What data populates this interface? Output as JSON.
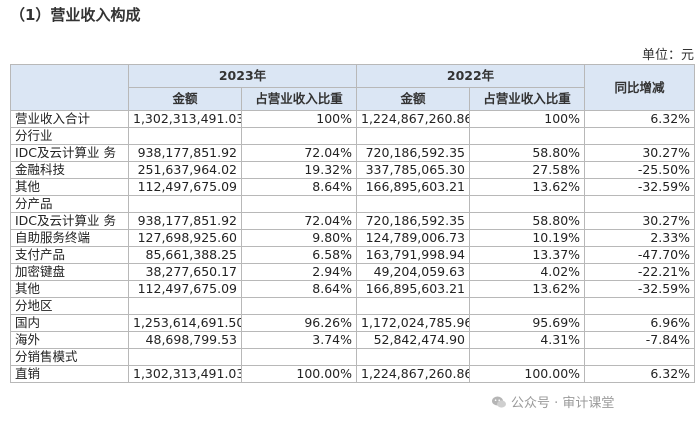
{
  "title": "（1）营业收入构成",
  "unit": "单位：元",
  "header": {
    "year_current": "2023年",
    "year_prior": "2022年",
    "amount": "金额",
    "share": "占营业收入比重",
    "yoy": "同比增减"
  },
  "rows": [
    {
      "type": "data",
      "label": "营业收入合计",
      "a1": "1,302,313,491.03",
      "p1": "100%",
      "a2": "1,224,867,260.86",
      "p2": "100%",
      "yoy": "6.32%"
    },
    {
      "type": "section",
      "label": "分行业"
    },
    {
      "type": "data",
      "label": "IDC及云计算业 务",
      "a1": "938,177,851.92",
      "p1": "72.04%",
      "a2": "720,186,592.35",
      "p2": "58.80%",
      "yoy": "30.27%"
    },
    {
      "type": "data",
      "label": "金融科技",
      "a1": "251,637,964.02",
      "p1": "19.32%",
      "a2": "337,785,065.30",
      "p2": "27.58%",
      "yoy": "-25.50%"
    },
    {
      "type": "data",
      "label": "其他",
      "a1": "112,497,675.09",
      "p1": "8.64%",
      "a2": "166,895,603.21",
      "p2": "13.62%",
      "yoy": "-32.59%"
    },
    {
      "type": "section",
      "label": "分产品"
    },
    {
      "type": "data",
      "label": "IDC及云计算业 务",
      "a1": "938,177,851.92",
      "p1": "72.04%",
      "a2": "720,186,592.35",
      "p2": "58.80%",
      "yoy": "30.27%"
    },
    {
      "type": "data",
      "label": "自助服务终端",
      "a1": "127,698,925.60",
      "p1": "9.80%",
      "a2": "124,789,006.73",
      "p2": "10.19%",
      "yoy": "2.33%"
    },
    {
      "type": "data",
      "label": "支付产品",
      "a1": "85,661,388.25",
      "p1": "6.58%",
      "a2": "163,791,998.94",
      "p2": "13.37%",
      "yoy": "-47.70%"
    },
    {
      "type": "data",
      "label": "加密键盘",
      "a1": "38,277,650.17",
      "p1": "2.94%",
      "a2": "49,204,059.63",
      "p2": "4.02%",
      "yoy": "-22.21%"
    },
    {
      "type": "data",
      "label": "其他",
      "a1": "112,497,675.09",
      "p1": "8.64%",
      "a2": "166,895,603.21",
      "p2": "13.62%",
      "yoy": "-32.59%"
    },
    {
      "type": "section",
      "label": "分地区"
    },
    {
      "type": "data",
      "label": "国内",
      "a1": "1,253,614,691.50",
      "p1": "96.26%",
      "a2": "1,172,024,785.96",
      "p2": "95.69%",
      "yoy": "6.96%"
    },
    {
      "type": "data",
      "label": "海外",
      "a1": "48,698,799.53",
      "p1": "3.74%",
      "a2": "52,842,474.90",
      "p2": "4.31%",
      "yoy": "-7.84%"
    },
    {
      "type": "section",
      "label": "分销售模式"
    },
    {
      "type": "data",
      "label": "直销",
      "a1": "1,302,313,491.03",
      "p1": "100.00%",
      "a2": "1,224,867,260.86",
      "p2": "100.00%",
      "yoy": "6.32%"
    }
  ],
  "watermark": {
    "text": "公众号 · 审计课堂",
    "icon": "wechat-icon"
  },
  "colors": {
    "header_bg": "#dbe6f4",
    "border": "#b8b8b8"
  }
}
